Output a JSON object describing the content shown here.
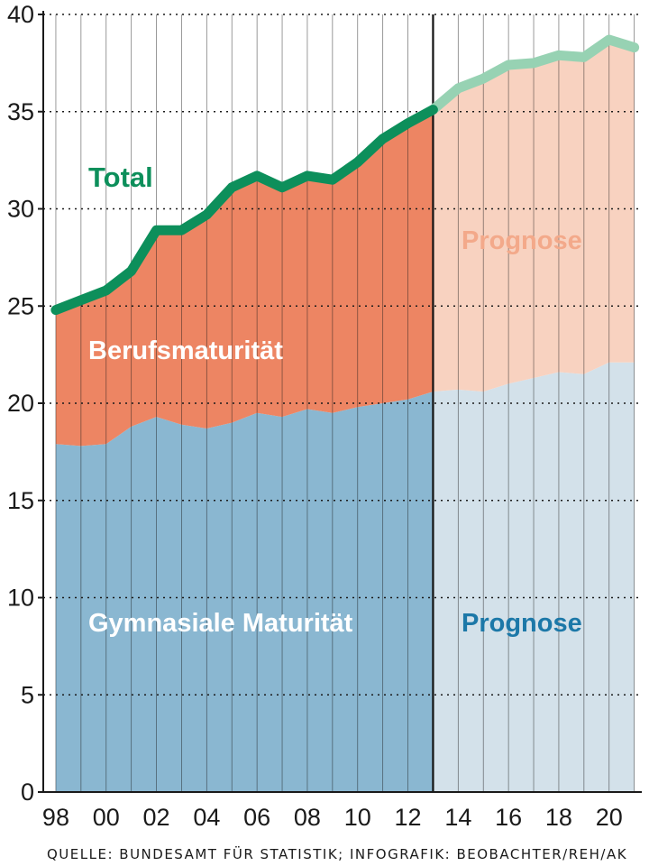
{
  "chart_data": {
    "type": "area",
    "x": [
      1998,
      1999,
      2000,
      2001,
      2002,
      2003,
      2004,
      2005,
      2006,
      2007,
      2008,
      2009,
      2010,
      2011,
      2012,
      2013,
      2014,
      2015,
      2016,
      2017,
      2018,
      2019,
      2020,
      2021
    ],
    "x_tick_labels": [
      "98",
      "00",
      "02",
      "04",
      "06",
      "08",
      "10",
      "12",
      "14",
      "16",
      "18",
      "20"
    ],
    "x_tick_years": [
      1998,
      2000,
      2002,
      2004,
      2006,
      2008,
      2010,
      2012,
      2014,
      2016,
      2018,
      2020
    ],
    "ylim": [
      0,
      40
    ],
    "y_ticks": [
      0,
      5,
      10,
      15,
      20,
      25,
      30,
      35,
      40
    ],
    "grid": true,
    "forecast_from": 2013,
    "series": [
      {
        "name": "Gymnasiale Maturität",
        "values": [
          17.9,
          17.8,
          17.9,
          18.8,
          19.3,
          18.9,
          18.7,
          19.0,
          19.5,
          19.3,
          19.7,
          19.5,
          19.8,
          20.0,
          20.2,
          20.6,
          20.7,
          20.6,
          21.0,
          21.3,
          21.6,
          21.5,
          22.1,
          22.1
        ],
        "color": "#8ab7d1",
        "forecast_color": "#d3e1ea",
        "label_color": "#ffffff",
        "forecast_label_color": "#1c78a8"
      },
      {
        "name": "Berufsmaturität",
        "values": [
          6.9,
          7.5,
          7.9,
          8.0,
          9.6,
          10.0,
          11.0,
          12.1,
          12.2,
          11.8,
          12.0,
          12.0,
          12.6,
          13.6,
          14.2,
          14.5,
          15.5,
          16.1,
          16.4,
          16.2,
          16.3,
          16.3,
          16.6,
          16.2
        ],
        "color": "#ed8563",
        "forecast_color": "#f8d2c0",
        "label_color": "#ffffff",
        "forecast_label_color": "#f3a98a"
      },
      {
        "name": "Total",
        "values": [
          24.8,
          25.3,
          25.8,
          26.8,
          28.9,
          28.9,
          29.7,
          31.1,
          31.7,
          31.1,
          31.7,
          31.5,
          32.4,
          33.6,
          34.4,
          35.1,
          36.2,
          36.7,
          37.4,
          37.5,
          37.9,
          37.8,
          38.7,
          38.3
        ],
        "color": "#0d8f5b",
        "forecast_color": "#97d2b3"
      }
    ],
    "labels": {
      "total": "Total",
      "berufs": "Berufsmaturität",
      "gymnasial": "Gymnasiale Maturität",
      "prognose_top": "Prognose",
      "prognose_bottom": "Prognose"
    }
  },
  "source": "QUELLE: BUNDESAMT FÜR STATISTIK; INFOGRAFIK: BEOBACHTER/REH/AK"
}
